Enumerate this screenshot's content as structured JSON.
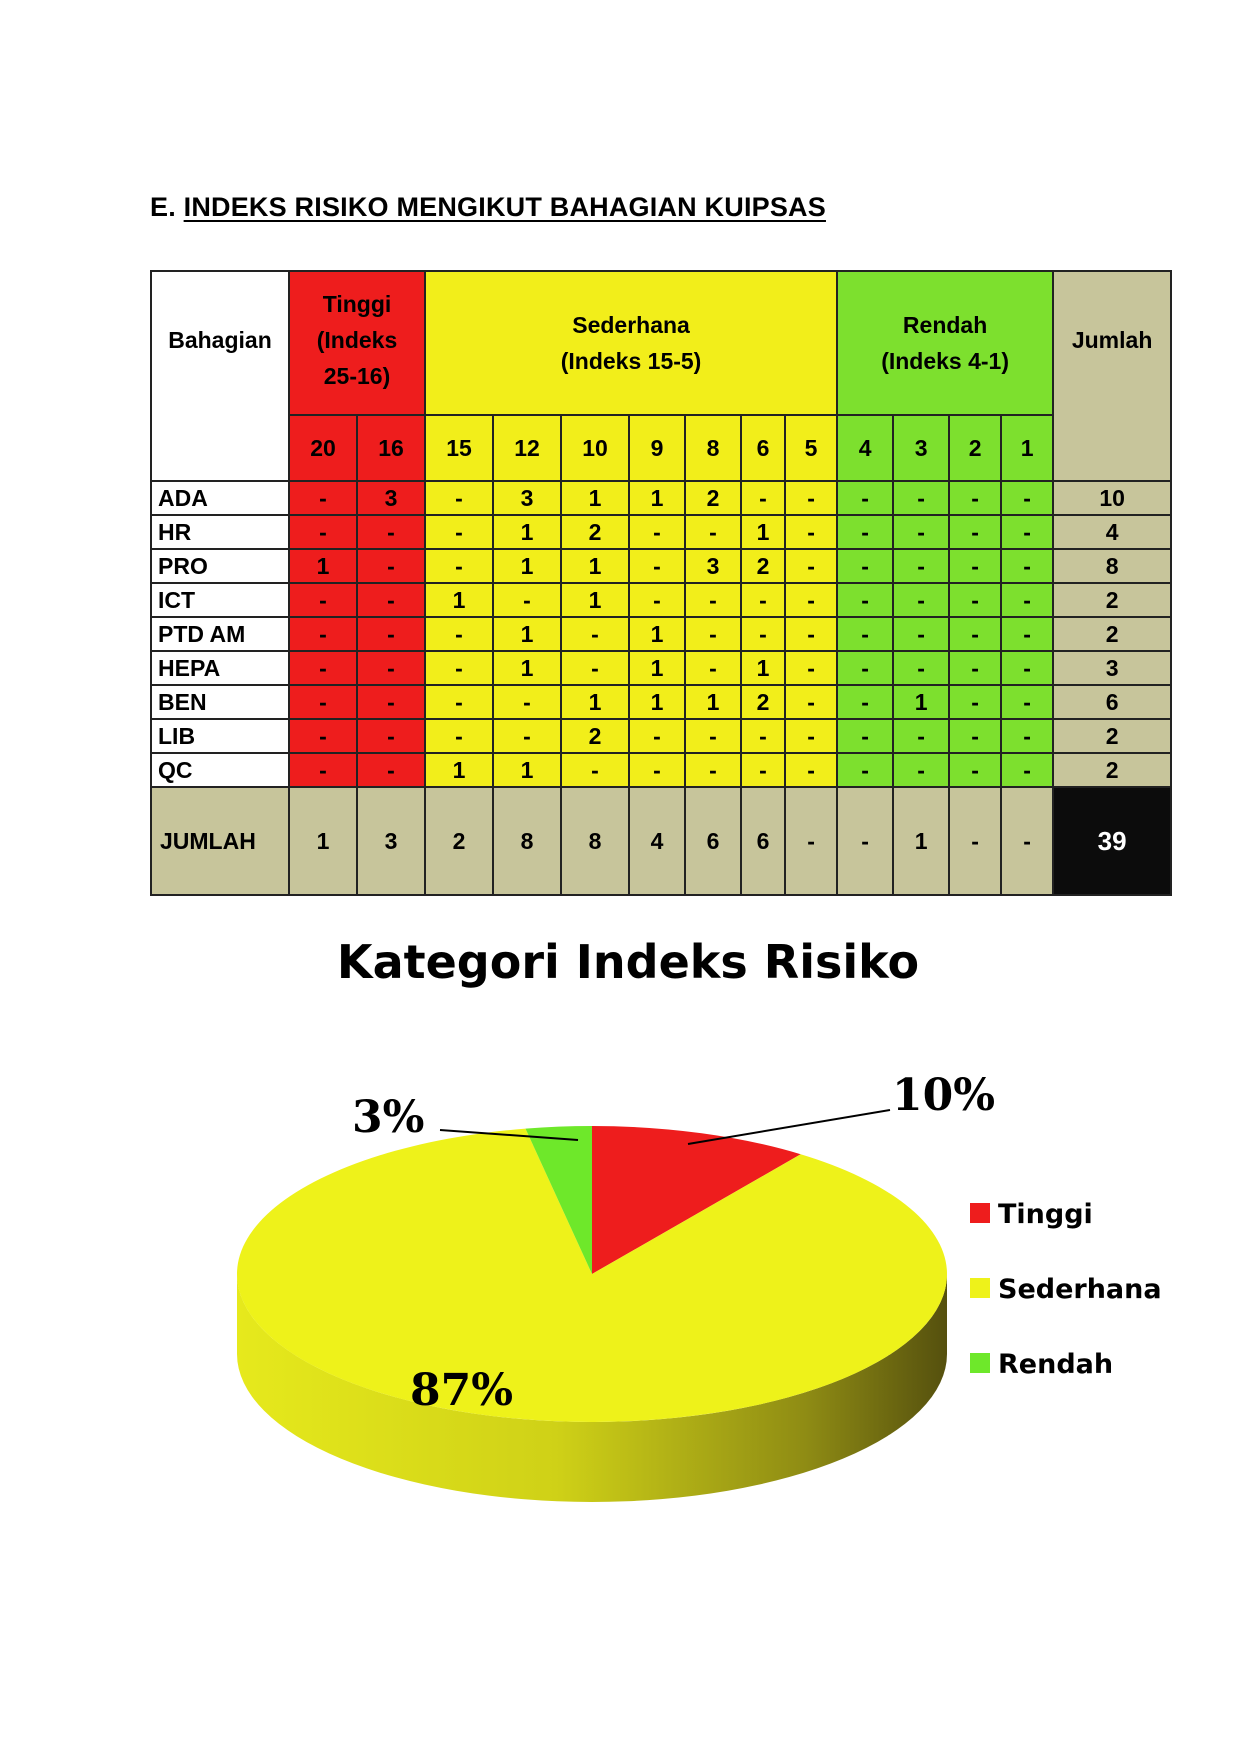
{
  "heading": {
    "prefix": "E.",
    "title": "INDEKS RISIKO MENGIKUT BAHAGIAN KUIPSAS"
  },
  "table": {
    "header": {
      "dept": "Bahagian",
      "tinggi": [
        "Tinggi",
        "(Indeks",
        "25-16)"
      ],
      "sederhana": [
        "Sederhana",
        "(Indeks 15-5)"
      ],
      "rendah": [
        "Rendah",
        "(Indeks 4-1)"
      ],
      "jumlah": "Jumlah"
    },
    "index_columns": [
      "20",
      "16",
      "15",
      "12",
      "10",
      "9",
      "8",
      "6",
      "5",
      "4",
      "3",
      "2",
      "1"
    ],
    "column_groups": [
      "tinggi",
      "tinggi",
      "sederhana",
      "sederhana",
      "sederhana",
      "sederhana",
      "sederhana",
      "sederhana",
      "sederhana",
      "rendah",
      "rendah",
      "rendah",
      "rendah"
    ],
    "rows": [
      {
        "dept": "ADA",
        "cells": [
          "-",
          "3",
          "-",
          "3",
          "1",
          "1",
          "2",
          "-",
          "-",
          "-",
          "-",
          "-",
          "-"
        ],
        "total": "10"
      },
      {
        "dept": "HR",
        "cells": [
          "-",
          "-",
          "-",
          "1",
          "2",
          "-",
          "-",
          "1",
          "-",
          "-",
          "-",
          "-",
          "-"
        ],
        "total": "4"
      },
      {
        "dept": "PRO",
        "cells": [
          "1",
          "-",
          "-",
          "1",
          "1",
          "-",
          "3",
          "2",
          "-",
          "-",
          "-",
          "-",
          "-"
        ],
        "total": "8"
      },
      {
        "dept": "ICT",
        "cells": [
          "-",
          "-",
          "1",
          "-",
          "1",
          "-",
          "-",
          "-",
          "-",
          "-",
          "-",
          "-",
          "-"
        ],
        "total": "2"
      },
      {
        "dept": "PTD AM",
        "cells": [
          "-",
          "-",
          "-",
          "1",
          "-",
          "1",
          "-",
          "-",
          "-",
          "-",
          "-",
          "-",
          "-"
        ],
        "total": "2"
      },
      {
        "dept": "HEPA",
        "cells": [
          "-",
          "-",
          "-",
          "1",
          "-",
          "1",
          "-",
          "1",
          "-",
          "-",
          "-",
          "-",
          "-"
        ],
        "total": "3"
      },
      {
        "dept": "BEN",
        "cells": [
          "-",
          "-",
          "-",
          "-",
          "1",
          "1",
          "1",
          "2",
          "-",
          "-",
          "1",
          "-",
          "-"
        ],
        "total": "6"
      },
      {
        "dept": "LIB",
        "cells": [
          "-",
          "-",
          "-",
          "-",
          "2",
          "-",
          "-",
          "-",
          "-",
          "-",
          "-",
          "-",
          "-"
        ],
        "total": "2"
      },
      {
        "dept": "QC",
        "cells": [
          "-",
          "-",
          "1",
          "1",
          "-",
          "-",
          "-",
          "-",
          "-",
          "-",
          "-",
          "-",
          "-"
        ],
        "total": "2"
      }
    ],
    "totals": {
      "label": "JUMLAH",
      "cells": [
        "1",
        "3",
        "2",
        "8",
        "8",
        "4",
        "6",
        "6",
        "-",
        "-",
        "1",
        "-",
        "-"
      ],
      "grand": "39"
    }
  },
  "colors": {
    "tinggi": "#ee1d1d",
    "sederhana": "#f2ee1a",
    "rendah": "#7de02e",
    "summary": "#c7c59b",
    "grand": "#0c0c0c"
  },
  "chart_data": {
    "type": "pie",
    "title": "Kategori Indeks Risiko",
    "style": "3d",
    "categories": [
      "Tinggi",
      "Sederhana",
      "Rendah"
    ],
    "values": [
      10,
      87,
      3
    ],
    "labels": [
      "10%",
      "87%",
      "3%"
    ],
    "colors": [
      "#ee1d1d",
      "#eef21a",
      "#6ee82a"
    ],
    "legend": "right"
  }
}
